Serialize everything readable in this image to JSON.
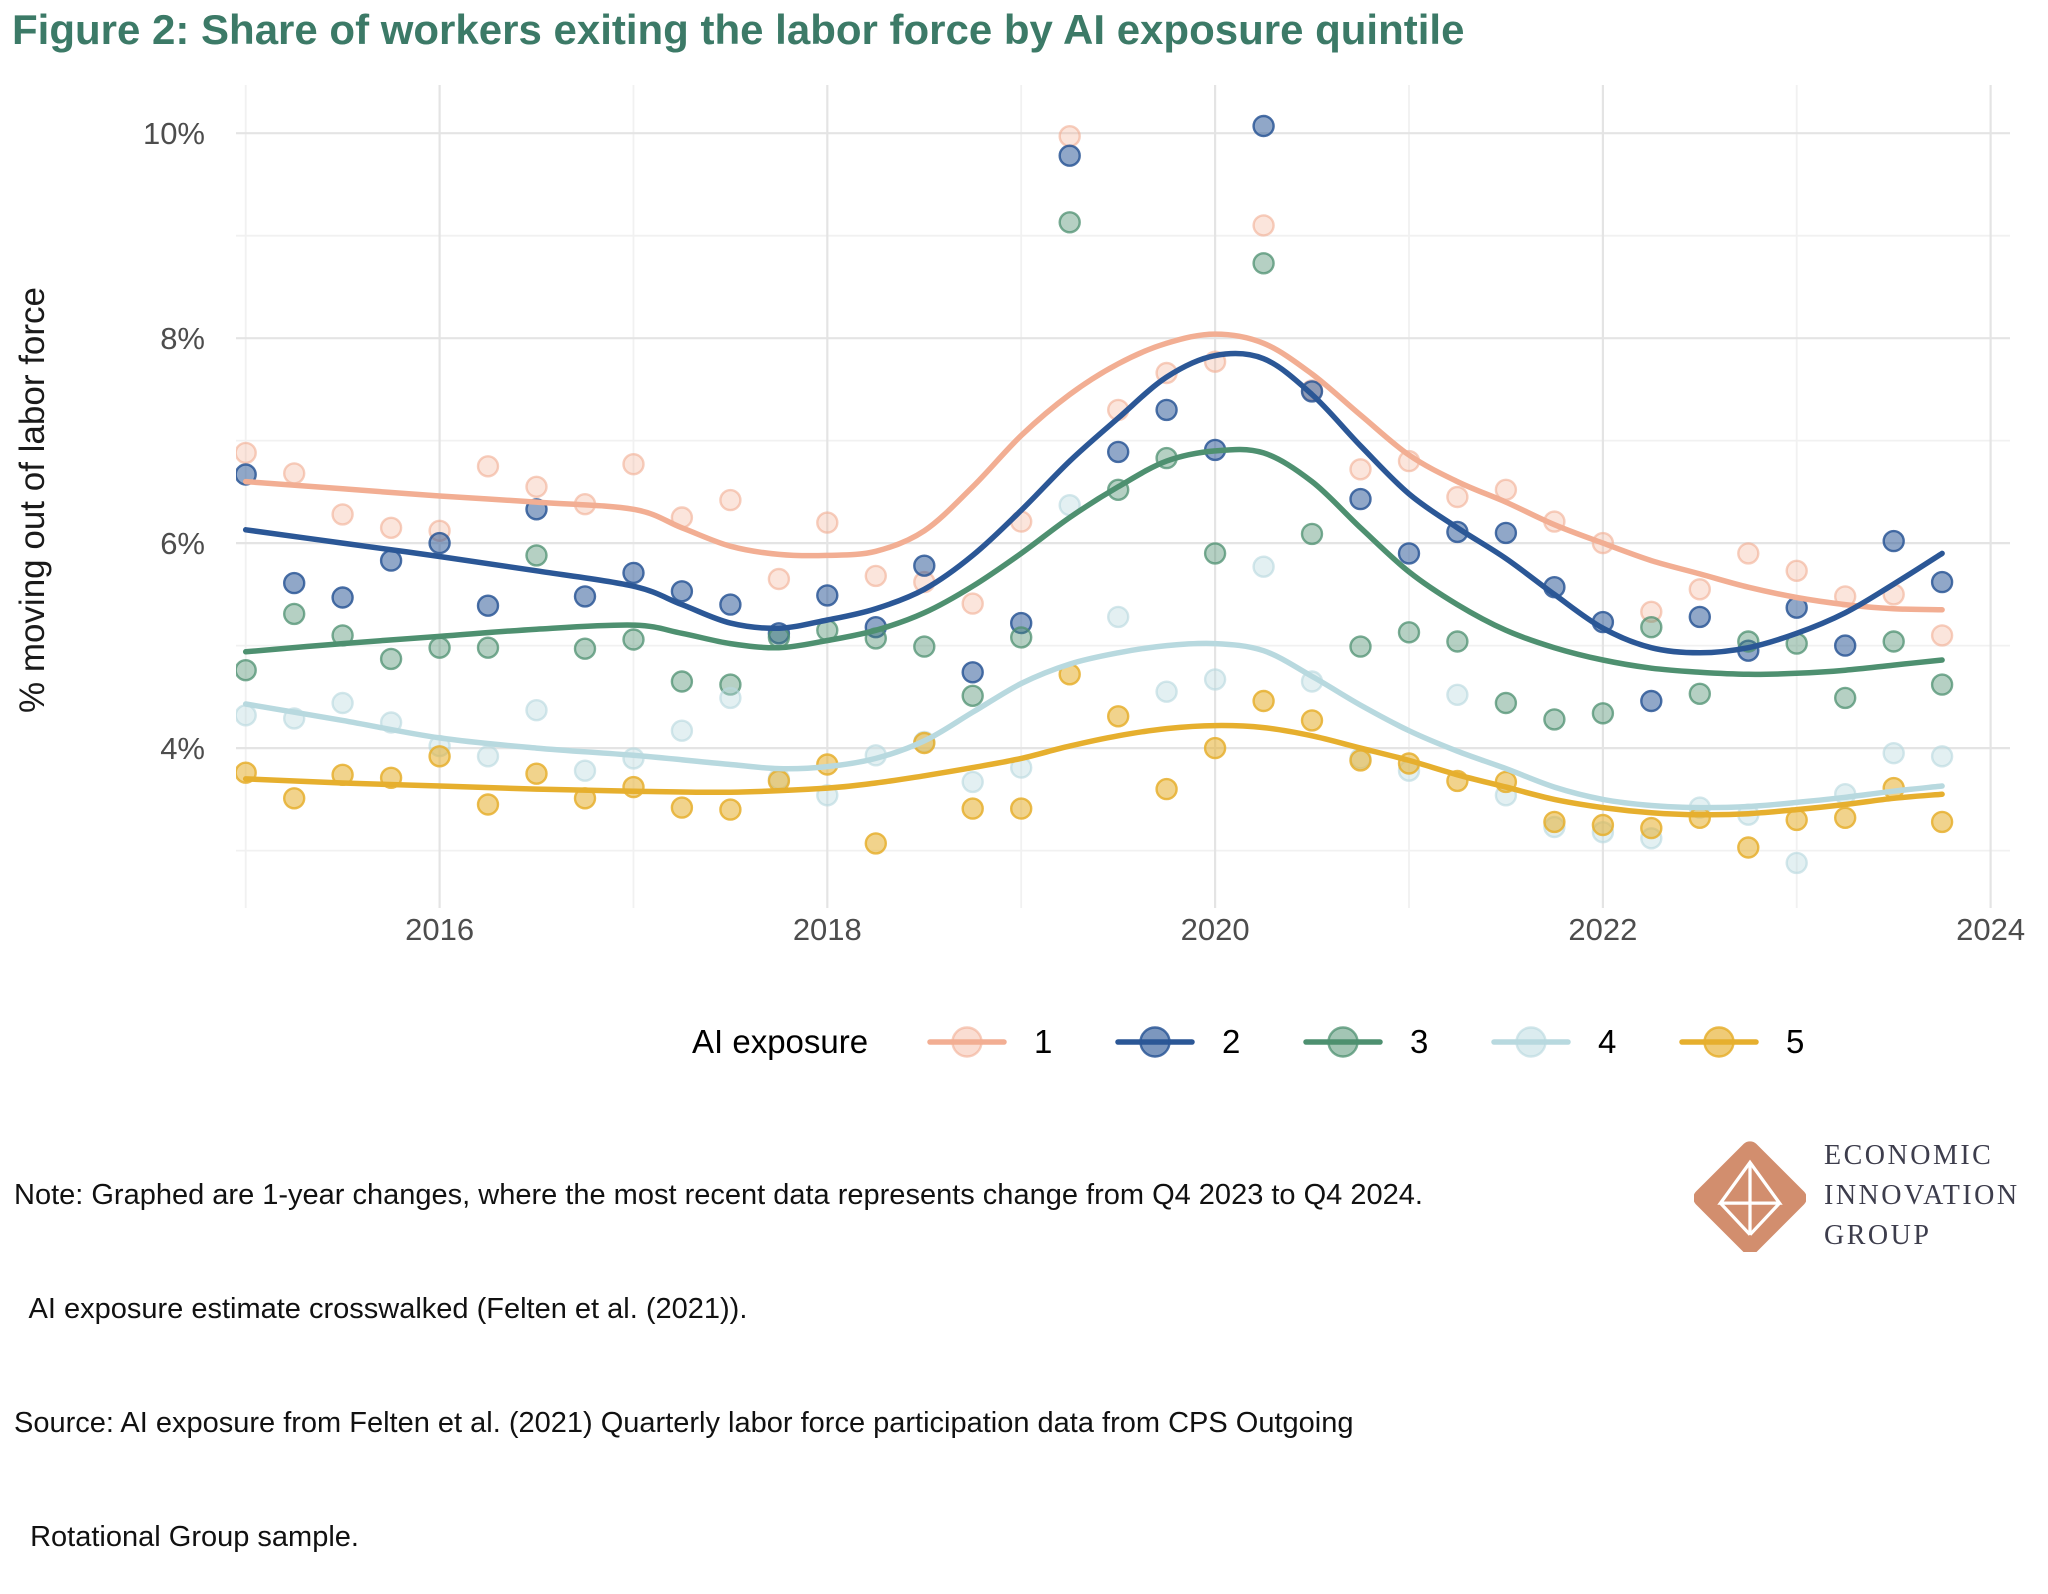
{
  "figure": {
    "title": "Figure 2: Share of workers exiting the labor force by AI exposure quintile",
    "title_color": "#3c7a67"
  },
  "chart_data": {
    "type": "scatter",
    "title": "Figure 2: Share of workers exiting the labor force by AI exposure quintile",
    "xlabel": "",
    "ylabel": "% moving out of labor force",
    "grid": true,
    "legend_position": "bottom",
    "legend_title": "AI exposure",
    "x_domain": [
      2014.95,
      2024.1
    ],
    "y_domain": [
      2.44,
      10.47
    ],
    "x_major_ticks": [
      2016,
      2018,
      2020,
      2022,
      2024
    ],
    "x_minor_gridlines": [
      2015,
      2017,
      2019,
      2021,
      2023
    ],
    "y_major_ticks": [
      4,
      6,
      8,
      10
    ],
    "y_major_labels": [
      "4%",
      "6%",
      "8%",
      "10%"
    ],
    "y_minor_gridlines": [
      3,
      5,
      7,
      9
    ],
    "quarters": [
      2015.0,
      2015.25,
      2015.5,
      2015.75,
      2016.0,
      2016.25,
      2016.5,
      2016.75,
      2017.0,
      2017.25,
      2017.5,
      2017.75,
      2018.0,
      2018.25,
      2018.5,
      2018.75,
      2019.0,
      2019.25,
      2019.5,
      2019.75,
      2020.0,
      2020.25,
      2020.5,
      2020.75,
      2021.0,
      2021.25,
      2021.5,
      2021.75,
      2022.0,
      2022.25,
      2022.5,
      2022.75,
      2023.0,
      2023.25,
      2023.5,
      2023.75
    ],
    "series": [
      {
        "name": "1",
        "color": "#f2ae93",
        "points": [
          6.88,
          6.68,
          6.28,
          6.15,
          6.12,
          6.75,
          6.55,
          6.38,
          6.77,
          6.25,
          6.42,
          5.65,
          6.2,
          5.68,
          5.62,
          5.41,
          6.21,
          9.97,
          7.3,
          7.66,
          7.77,
          9.1,
          7.49,
          6.72,
          6.8,
          6.45,
          6.52,
          6.21,
          6.0,
          5.33,
          5.55,
          5.9,
          5.73,
          5.48,
          5.5,
          5.1
        ],
        "line": [
          [
            2015,
            6.6
          ],
          [
            2015.5,
            6.53
          ],
          [
            2016,
            6.46
          ],
          [
            2016.5,
            6.4
          ],
          [
            2017,
            6.33
          ],
          [
            2017.25,
            6.15
          ],
          [
            2017.5,
            5.97
          ],
          [
            2017.75,
            5.89
          ],
          [
            2018,
            5.88
          ],
          [
            2018.25,
            5.92
          ],
          [
            2018.5,
            6.12
          ],
          [
            2018.75,
            6.55
          ],
          [
            2019,
            7.05
          ],
          [
            2019.25,
            7.45
          ],
          [
            2019.5,
            7.75
          ],
          [
            2019.75,
            7.95
          ],
          [
            2020,
            8.04
          ],
          [
            2020.25,
            7.95
          ],
          [
            2020.5,
            7.65
          ],
          [
            2020.75,
            7.25
          ],
          [
            2021,
            6.86
          ],
          [
            2021.25,
            6.6
          ],
          [
            2021.5,
            6.4
          ],
          [
            2021.75,
            6.18
          ],
          [
            2022,
            6.0
          ],
          [
            2022.25,
            5.83
          ],
          [
            2022.5,
            5.7
          ],
          [
            2022.75,
            5.57
          ],
          [
            2023,
            5.47
          ],
          [
            2023.25,
            5.4
          ],
          [
            2023.5,
            5.36
          ],
          [
            2023.75,
            5.35
          ]
        ]
      },
      {
        "name": "2",
        "color": "#2b5796",
        "points": [
          6.67,
          5.61,
          5.47,
          5.83,
          6.0,
          5.39,
          6.33,
          5.48,
          5.71,
          5.53,
          5.4,
          5.12,
          5.49,
          5.18,
          5.78,
          4.74,
          5.22,
          9.78,
          6.89,
          7.3,
          6.91,
          10.07,
          7.48,
          6.43,
          5.9,
          6.11,
          6.1,
          5.57,
          5.23,
          4.46,
          5.28,
          4.95,
          5.37,
          5.0,
          6.02,
          5.62
        ],
        "line": [
          [
            2015,
            6.13
          ],
          [
            2015.5,
            6.0
          ],
          [
            2016,
            5.87
          ],
          [
            2016.5,
            5.73
          ],
          [
            2017,
            5.58
          ],
          [
            2017.25,
            5.4
          ],
          [
            2017.5,
            5.22
          ],
          [
            2017.75,
            5.17
          ],
          [
            2018,
            5.25
          ],
          [
            2018.25,
            5.36
          ],
          [
            2018.5,
            5.55
          ],
          [
            2018.75,
            5.88
          ],
          [
            2019,
            6.32
          ],
          [
            2019.25,
            6.8
          ],
          [
            2019.5,
            7.22
          ],
          [
            2019.75,
            7.62
          ],
          [
            2020,
            7.83
          ],
          [
            2020.25,
            7.8
          ],
          [
            2020.5,
            7.45
          ],
          [
            2020.75,
            6.95
          ],
          [
            2021,
            6.48
          ],
          [
            2021.25,
            6.15
          ],
          [
            2021.5,
            5.85
          ],
          [
            2021.75,
            5.5
          ],
          [
            2022,
            5.17
          ],
          [
            2022.25,
            4.98
          ],
          [
            2022.5,
            4.93
          ],
          [
            2022.75,
            4.98
          ],
          [
            2023,
            5.12
          ],
          [
            2023.25,
            5.32
          ],
          [
            2023.5,
            5.6
          ],
          [
            2023.75,
            5.9
          ]
        ]
      },
      {
        "name": "3",
        "color": "#4e9070",
        "points": [
          4.76,
          5.31,
          5.1,
          4.87,
          4.98,
          4.98,
          5.88,
          4.97,
          5.06,
          4.65,
          4.62,
          5.08,
          5.15,
          5.07,
          4.99,
          4.51,
          5.08,
          9.13,
          6.52,
          6.83,
          5.9,
          8.73,
          6.09,
          4.99,
          5.13,
          5.04,
          4.44,
          4.28,
          4.34,
          5.18,
          4.53,
          5.04,
          5.02,
          4.49,
          5.04,
          4.62
        ],
        "line": [
          [
            2015,
            4.94
          ],
          [
            2015.5,
            5.02
          ],
          [
            2016,
            5.09
          ],
          [
            2016.5,
            5.16
          ],
          [
            2017,
            5.2
          ],
          [
            2017.25,
            5.12
          ],
          [
            2017.5,
            5.02
          ],
          [
            2017.75,
            4.98
          ],
          [
            2018,
            5.05
          ],
          [
            2018.25,
            5.15
          ],
          [
            2018.5,
            5.32
          ],
          [
            2018.75,
            5.58
          ],
          [
            2019,
            5.9
          ],
          [
            2019.25,
            6.25
          ],
          [
            2019.5,
            6.55
          ],
          [
            2019.75,
            6.8
          ],
          [
            2020,
            6.9
          ],
          [
            2020.25,
            6.88
          ],
          [
            2020.5,
            6.6
          ],
          [
            2020.75,
            6.15
          ],
          [
            2021,
            5.72
          ],
          [
            2021.25,
            5.4
          ],
          [
            2021.5,
            5.15
          ],
          [
            2021.75,
            4.98
          ],
          [
            2022,
            4.86
          ],
          [
            2022.25,
            4.78
          ],
          [
            2022.5,
            4.74
          ],
          [
            2022.75,
            4.72
          ],
          [
            2023,
            4.73
          ],
          [
            2023.25,
            4.76
          ],
          [
            2023.5,
            4.81
          ],
          [
            2023.75,
            4.86
          ]
        ]
      },
      {
        "name": "4",
        "color": "#b8d9df",
        "points": [
          4.32,
          4.29,
          4.44,
          4.25,
          4.02,
          3.92,
          4.37,
          3.78,
          3.9,
          4.17,
          4.49,
          3.7,
          3.54,
          3.93,
          4.06,
          3.67,
          3.81,
          6.37,
          5.28,
          4.55,
          4.67,
          5.77,
          4.65,
          3.9,
          3.78,
          4.52,
          3.54,
          3.23,
          3.18,
          3.12,
          3.42,
          3.35,
          2.88,
          3.55,
          3.95,
          3.92
        ],
        "line": [
          [
            2015,
            4.43
          ],
          [
            2015.5,
            4.27
          ],
          [
            2016,
            4.1
          ],
          [
            2016.5,
            4.0
          ],
          [
            2017,
            3.93
          ],
          [
            2017.5,
            3.84
          ],
          [
            2017.75,
            3.8
          ],
          [
            2018,
            3.82
          ],
          [
            2018.25,
            3.9
          ],
          [
            2018.5,
            4.07
          ],
          [
            2018.75,
            4.35
          ],
          [
            2019,
            4.63
          ],
          [
            2019.25,
            4.82
          ],
          [
            2019.5,
            4.93
          ],
          [
            2019.75,
            5.0
          ],
          [
            2020,
            5.02
          ],
          [
            2020.25,
            4.95
          ],
          [
            2020.5,
            4.7
          ],
          [
            2020.75,
            4.42
          ],
          [
            2021,
            4.17
          ],
          [
            2021.25,
            3.97
          ],
          [
            2021.5,
            3.8
          ],
          [
            2021.75,
            3.62
          ],
          [
            2022,
            3.5
          ],
          [
            2022.25,
            3.44
          ],
          [
            2022.5,
            3.42
          ],
          [
            2022.75,
            3.43
          ],
          [
            2023,
            3.47
          ],
          [
            2023.25,
            3.52
          ],
          [
            2023.5,
            3.58
          ],
          [
            2023.75,
            3.63
          ]
        ]
      },
      {
        "name": "5",
        "color": "#e6af2e",
        "points": [
          3.76,
          3.51,
          3.74,
          3.71,
          3.92,
          3.45,
          3.75,
          3.51,
          3.62,
          3.42,
          3.4,
          3.68,
          3.84,
          3.07,
          4.05,
          3.41,
          3.41,
          4.72,
          4.31,
          3.6,
          4.0,
          4.46,
          4.27,
          3.88,
          3.85,
          3.68,
          3.67,
          3.28,
          3.25,
          3.22,
          3.32,
          3.03,
          3.3,
          3.32,
          3.61,
          3.28
        ],
        "line": [
          [
            2015,
            3.7
          ],
          [
            2015.5,
            3.66
          ],
          [
            2016,
            3.63
          ],
          [
            2016.5,
            3.6
          ],
          [
            2017,
            3.58
          ],
          [
            2017.5,
            3.57
          ],
          [
            2018,
            3.61
          ],
          [
            2018.25,
            3.66
          ],
          [
            2018.5,
            3.73
          ],
          [
            2018.75,
            3.81
          ],
          [
            2019,
            3.9
          ],
          [
            2019.25,
            4.02
          ],
          [
            2019.5,
            4.12
          ],
          [
            2019.75,
            4.19
          ],
          [
            2020,
            4.22
          ],
          [
            2020.25,
            4.2
          ],
          [
            2020.5,
            4.12
          ],
          [
            2020.75,
            4.0
          ],
          [
            2021,
            3.88
          ],
          [
            2021.25,
            3.74
          ],
          [
            2021.5,
            3.62
          ],
          [
            2021.75,
            3.5
          ],
          [
            2022,
            3.42
          ],
          [
            2022.25,
            3.37
          ],
          [
            2022.5,
            3.35
          ],
          [
            2022.75,
            3.36
          ],
          [
            2023,
            3.4
          ],
          [
            2023.25,
            3.45
          ],
          [
            2023.5,
            3.51
          ],
          [
            2023.75,
            3.55
          ]
        ]
      }
    ]
  },
  "notes": {
    "line1": "Note: Graphed are 1-year changes, where the most recent data represents change from Q4 2023 to Q4 2024.",
    "line2": "  AI exposure estimate crosswalked (Felten et al. (2021)).",
    "line3": "Source: AI exposure from Felten et al. (2021) Quarterly labor force participation data from CPS Outgoing",
    "line4": "  Rotational Group sample."
  },
  "logo": {
    "mark_color": "#d28e6e",
    "line1": "ECONOMIC",
    "line2": "INNOVATION",
    "line3": "GROUP"
  }
}
